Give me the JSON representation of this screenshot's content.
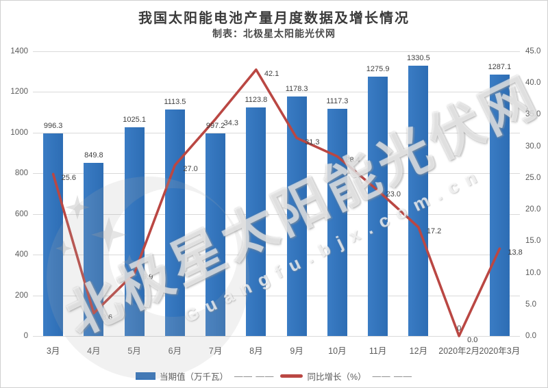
{
  "header": {
    "title": "我国太阳能电池产量月度数据及增长情况",
    "subtitle": "制表：北极星太阳能光伏网"
  },
  "watermark": {
    "line1": "北极星太阳能光伏网",
    "line2": "Guangfu.bjx.com.cn"
  },
  "colors": {
    "bar": "#2E6FB7",
    "line": "#BA4743",
    "gridline": "#D9D9D9",
    "axis_text": "#595959",
    "label_text": "#3F3F3F"
  },
  "chart_data": {
    "type": "bar+line",
    "title": "我国太阳能电池产量月度数据及增长情况",
    "subtitle": "制表：北极星太阳能光伏网",
    "grid": true,
    "legend_position": "bottom",
    "categories": [
      "3月",
      "4月",
      "5月",
      "6月",
      "7月",
      "8月",
      "9月",
      "10月",
      "11月",
      "12月",
      "2020年2月",
      "2020年3月"
    ],
    "series": [
      {
        "name": "当期值（万千瓦）",
        "type": "bar",
        "axis": "left",
        "color": "#2E6FB7",
        "values": [
          996.3,
          849.8,
          1025.1,
          1113.5,
          997.2,
          1123.8,
          1178.3,
          1117.3,
          1275.9,
          1330.5,
          0,
          1287.1
        ],
        "labels": [
          "996.3",
          "849.8",
          "1025.1",
          "1113.5",
          "997.2",
          "1123.8",
          "1178.3",
          "1117.3",
          "1275.9",
          "1330.5",
          "0",
          "1287.1"
        ]
      },
      {
        "name": "同比增长（%）",
        "type": "line",
        "axis": "right",
        "color": "#BA4743",
        "values": [
          25.6,
          3.6,
          9.9,
          27.0,
          34.3,
          42.1,
          31.3,
          28.4,
          23.0,
          17.2,
          0.0,
          13.8
        ],
        "labels": [
          "25.6",
          "3.6",
          "9.9",
          "27.0",
          "34.3",
          "42.1",
          "31.3",
          "28.4",
          "23.0",
          "17.2",
          "0.0",
          "13.8"
        ]
      }
    ],
    "left_axis": {
      "min": 0,
      "max": 1400,
      "step": 200,
      "ticks": [
        "0",
        "200",
        "400",
        "600",
        "800",
        "1000",
        "1200",
        "1400"
      ]
    },
    "right_axis": {
      "min": 0,
      "max": 45,
      "step": 5,
      "ticks": [
        "0.0",
        "5.0",
        "10.0",
        "15.0",
        "20.0",
        "25.0",
        "30.0",
        "35.0",
        "40.0",
        "45.0"
      ]
    },
    "legend": [
      {
        "swatch": "bar",
        "label": "当期值（万千瓦）"
      },
      {
        "swatch": "none",
        "label": "—— ——"
      },
      {
        "swatch": "line",
        "label": "同比增长（%）"
      },
      {
        "swatch": "none",
        "label": "—— ——"
      }
    ]
  }
}
